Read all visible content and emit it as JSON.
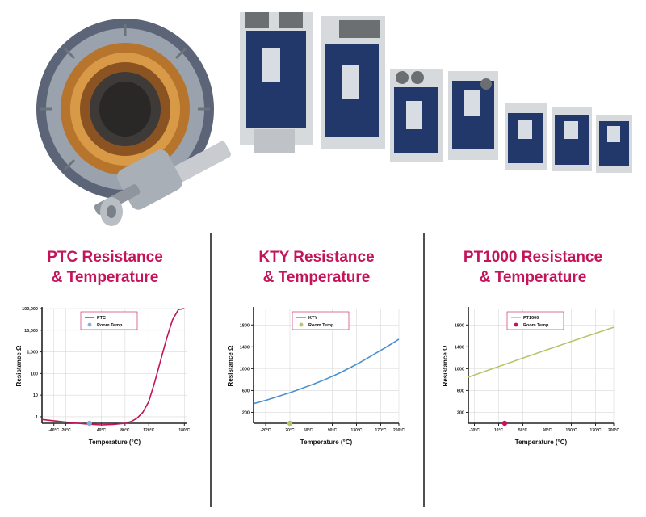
{
  "images": {
    "motor": "stator-and-rotor-photo",
    "drives": "variable-frequency-drives-photo"
  },
  "colors": {
    "title": "#c4145a",
    "axis": "#222222",
    "grid": "#d9d9d9"
  },
  "panels": [
    {
      "title_line1": "PTC Resistance",
      "title_line2": "& Temperature"
    },
    {
      "title_line1": "KTY Resistance",
      "title_line2": "& Temperature"
    },
    {
      "title_line1": "PT1000 Resistance",
      "title_line2": "& Temperature"
    }
  ],
  "chart_data": [
    {
      "type": "line",
      "xlabel": "Temperature (°C)",
      "ylabel": "Resistance Ω",
      "xlim": [
        -60,
        185
      ],
      "ylim": [
        0.5,
        100000
      ],
      "y_scale": "log",
      "x_ticks": [
        -40,
        -20,
        40,
        80,
        120,
        180
      ],
      "x_tick_labels": [
        "-40°C",
        "-20°C",
        "40°C",
        "80°C",
        "120°C",
        "180°C"
      ],
      "y_ticks": [
        1,
        10,
        100,
        1000,
        10000,
        100000
      ],
      "y_tick_labels": [
        "1",
        "10",
        "100",
        "1,000",
        "10,000",
        "100,000"
      ],
      "grid": true,
      "legend_position": "top-center",
      "series": [
        {
          "name": "PTC",
          "color": "#c4145a",
          "dash": "none",
          "x": [
            -60,
            -40,
            -20,
            0,
            20,
            40,
            60,
            80,
            90,
            100,
            110,
            120,
            130,
            140,
            150,
            160,
            170,
            180
          ],
          "y": [
            0.75,
            0.65,
            0.57,
            0.5,
            0.45,
            0.42,
            0.44,
            0.5,
            0.6,
            0.85,
            1.6,
            5,
            40,
            400,
            4000,
            30000,
            90000,
            100000
          ]
        }
      ],
      "marker": {
        "label": "Room Temp.",
        "x": 20,
        "color": "#7fb2dd"
      }
    },
    {
      "type": "line",
      "xlabel": "Temperature (°C)",
      "ylabel": "Resistance Ω",
      "xlim": [
        -40,
        200
      ],
      "ylim": [
        0,
        2100
      ],
      "y_scale": "linear",
      "x_ticks": [
        -20,
        20,
        50,
        90,
        130,
        170,
        200
      ],
      "x_tick_labels": [
        "-20°C",
        "20°C",
        "50°C",
        "90°C",
        "130°C",
        "170°C",
        "200°C"
      ],
      "y_ticks": [
        200,
        600,
        1000,
        1400,
        1800
      ],
      "y_tick_labels": [
        "200",
        "600",
        "1000",
        "1400",
        "1800"
      ],
      "grid": true,
      "legend_position": "top-center",
      "series": [
        {
          "name": "KTY",
          "color": "#4a8fd0",
          "dash": "none",
          "x": [
            -40,
            -20,
            0,
            20,
            40,
            60,
            80,
            100,
            120,
            140,
            160,
            180,
            200
          ],
          "y": [
            360,
            420,
            490,
            560,
            640,
            720,
            810,
            910,
            1020,
            1140,
            1270,
            1400,
            1540
          ]
        }
      ],
      "marker": {
        "label": "Room Temp.",
        "x": 20,
        "color": "#b3c66a"
      }
    },
    {
      "type": "line",
      "xlabel": "Temperature (°C)",
      "ylabel": "Resistance Ω",
      "xlim": [
        -40,
        200
      ],
      "ylim": [
        0,
        2100
      ],
      "y_scale": "linear",
      "x_ticks": [
        -30,
        10,
        50,
        90,
        130,
        170,
        200
      ],
      "x_tick_labels": [
        "-30°C",
        "10°C",
        "50°C",
        "90°C",
        "130°C",
        "170°C",
        "200°C"
      ],
      "y_ticks": [
        200,
        600,
        1000,
        1400,
        1800
      ],
      "y_tick_labels": [
        "200",
        "600",
        "1000",
        "1400",
        "1800"
      ],
      "grid": true,
      "legend_position": "top-center",
      "series": [
        {
          "name": "PT1000",
          "color": "#b8c46a",
          "dash": "none",
          "x": [
            -40,
            0,
            40,
            80,
            120,
            160,
            200
          ],
          "y": [
            845,
            1000,
            1155,
            1309,
            1460,
            1610,
            1758
          ]
        }
      ],
      "marker": {
        "label": "Room Temp.",
        "x": 20,
        "color": "#c4145a"
      }
    }
  ]
}
